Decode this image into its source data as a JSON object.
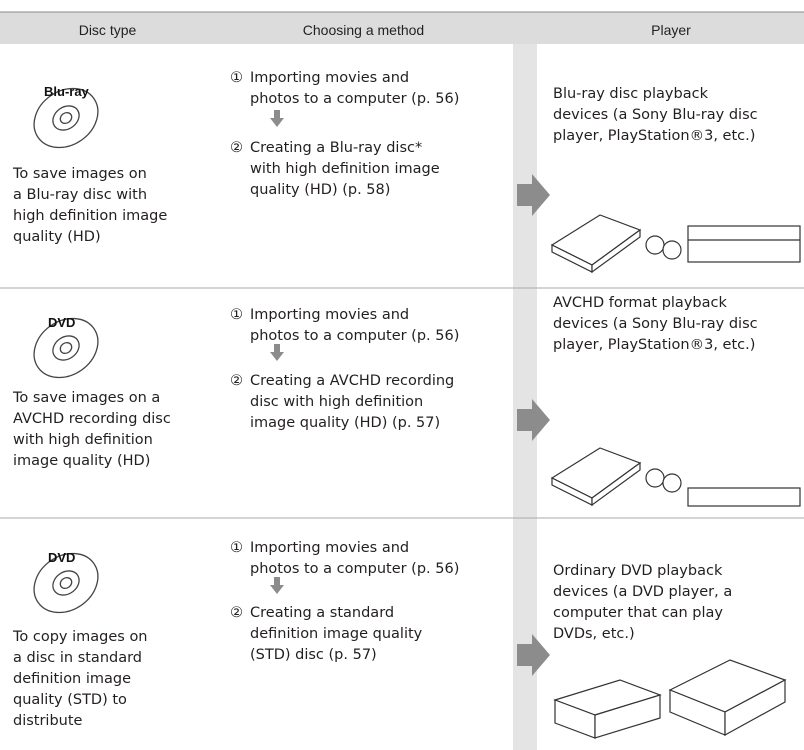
{
  "header": {
    "columns": [
      "Disc type",
      "Choosing a method",
      "Player"
    ]
  },
  "rows": [
    {
      "disc_logo": "Blu-ray",
      "description": [
        "To save images on",
        "a Blu-ray disc with",
        "high definition image",
        "quality (HD)"
      ],
      "steps": [
        {
          "number": "①",
          "lines": [
            "Importing movies and",
            "photos to a computer (p. 56)"
          ]
        },
        {
          "number": "②",
          "lines": [
            "Creating a Blu-ray disc*",
            "with high definition image",
            "quality (HD) (p. 58)"
          ]
        }
      ],
      "player": [
        "Blu-ray disc playback",
        "devices (a Sony Blu-ray disc",
        "player, PlayStation®3, etc.)"
      ]
    },
    {
      "disc_logo": "DVD",
      "description": [
        "To save images on a",
        "AVCHD recording disc",
        "with high definition",
        "image quality (HD)"
      ],
      "steps": [
        {
          "number": "①",
          "lines": [
            "Importing movies and",
            "photos to a computer (p. 56)"
          ]
        },
        {
          "number": "②",
          "lines": [
            "Creating a AVCHD recording",
            "disc with high definition",
            "image quality (HD) (p. 57)"
          ]
        }
      ],
      "player": [
        "AVCHD format playback",
        "devices (a Sony Blu-ray disc",
        "player, PlayStation®3, etc.)"
      ]
    },
    {
      "disc_logo": "DVD",
      "description": [
        "To copy images on",
        "a disc in standard",
        "definition image",
        "quality (STD) to",
        "distribute"
      ],
      "steps": [
        {
          "number": "①",
          "lines": [
            "Importing movies and",
            "photos to a computer (p. 56)"
          ]
        },
        {
          "number": "②",
          "lines": [
            "Creating a standard",
            "definition image quality",
            "(STD) disc (p. 57)"
          ]
        }
      ],
      "player": [
        "Ordinary DVD playback",
        "devices (a DVD player, a",
        "computer that can play",
        "DVDs, etc.)"
      ]
    }
  ]
}
